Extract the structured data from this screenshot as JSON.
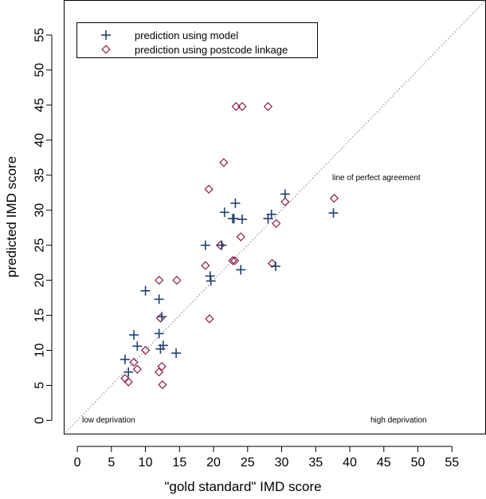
{
  "chart_data": {
    "type": "scatter",
    "title": "",
    "xlabel": "\"gold standard\" IMD score",
    "ylabel": "predicted IMD score",
    "xlim": [
      -2,
      60
    ],
    "ylim": [
      -2,
      60
    ],
    "x_ticks": [
      0,
      5,
      10,
      15,
      20,
      25,
      30,
      35,
      40,
      45,
      50,
      55
    ],
    "y_ticks": [
      0,
      5,
      10,
      15,
      20,
      25,
      30,
      35,
      40,
      45,
      50,
      55
    ],
    "grid": false,
    "legend_position": "top-left",
    "colors": {
      "model": "#1f3f6e",
      "postcode": "#8b1a4a",
      "reference": "#444444"
    },
    "series": [
      {
        "name": "prediction using model",
        "marker": "plus",
        "points": [
          [
            7.0,
            8.7
          ],
          [
            7.5,
            6.9
          ],
          [
            8.3,
            12.2
          ],
          [
            8.8,
            10.6
          ],
          [
            10.0,
            18.5
          ],
          [
            12.0,
            17.3
          ],
          [
            12.0,
            12.4
          ],
          [
            12.4,
            14.8
          ],
          [
            12.2,
            10.2
          ],
          [
            12.6,
            10.7
          ],
          [
            14.5,
            9.6
          ],
          [
            18.8,
            25.0
          ],
          [
            19.5,
            20.6
          ],
          [
            19.6,
            19.9
          ],
          [
            21.2,
            25.0
          ],
          [
            21.6,
            29.7
          ],
          [
            22.8,
            28.8
          ],
          [
            23.2,
            31.0
          ],
          [
            23.0,
            28.8
          ],
          [
            24.0,
            21.5
          ],
          [
            24.2,
            28.7
          ],
          [
            28.0,
            28.8
          ],
          [
            28.5,
            29.4
          ],
          [
            29.1,
            22.0
          ],
          [
            30.5,
            32.3
          ],
          [
            37.6,
            29.6
          ]
        ]
      },
      {
        "name": "prediction using postcode linkage",
        "marker": "diamond",
        "points": [
          [
            7.0,
            6.0
          ],
          [
            7.5,
            5.5
          ],
          [
            8.3,
            8.3
          ],
          [
            8.8,
            7.3
          ],
          [
            10.0,
            10.0
          ],
          [
            12.0,
            20.0
          ],
          [
            12.2,
            14.6
          ],
          [
            12.0,
            6.9
          ],
          [
            12.4,
            7.7
          ],
          [
            12.5,
            5.1
          ],
          [
            14.6,
            20.0
          ],
          [
            18.8,
            22.1
          ],
          [
            19.3,
            33.0
          ],
          [
            19.4,
            14.5
          ],
          [
            21.0,
            25.0
          ],
          [
            21.5,
            36.8
          ],
          [
            22.8,
            22.8
          ],
          [
            23.1,
            22.8
          ],
          [
            23.3,
            44.8
          ],
          [
            24.2,
            44.8
          ],
          [
            24.0,
            26.2
          ],
          [
            28.0,
            44.8
          ],
          [
            28.6,
            22.4
          ],
          [
            29.2,
            28.1
          ],
          [
            30.5,
            31.2
          ],
          [
            37.7,
            31.7
          ]
        ]
      }
    ],
    "reference_line": {
      "label": "line of perfect agreement",
      "from": [
        -2,
        -2
      ],
      "to": [
        60,
        60
      ]
    },
    "annotations": {
      "low": "low deprivation",
      "high": "high deprivation"
    }
  }
}
